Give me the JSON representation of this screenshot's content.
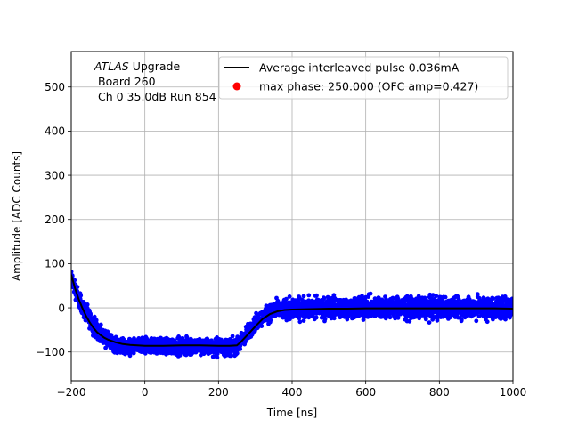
{
  "chart_data": {
    "type": "scatter",
    "xlabel": "Time [ns]",
    "ylabel": "Amplitude [ADC Counts]",
    "xlim": [
      -200,
      1000
    ],
    "ylim": [
      -165,
      580
    ],
    "grid": true,
    "xticks": [
      -200,
      0,
      200,
      400,
      600,
      800,
      1000
    ],
    "xtick_labels": [
      "−200",
      "0",
      "200",
      "400",
      "600",
      "800",
      "1000"
    ],
    "yticks": [
      -100,
      0,
      100,
      200,
      300,
      400,
      500
    ],
    "ytick_labels": [
      "−100",
      "0",
      "100",
      "200",
      "300",
      "400",
      "500"
    ],
    "annotation": {
      "line1_italic": "ATLAS",
      "line1_rest": " Upgrade",
      "line2": "Board 260",
      "line3": "Ch 0 35.0dB  Run 854"
    },
    "legend": {
      "position": "top-right",
      "entries": [
        {
          "label": "Average interleaved pulse 0.036mA",
          "color": "#000000",
          "marker": "line"
        },
        {
          "label": "max phase: 250.000 (OFC amp=0.427)",
          "color": "#ff0000",
          "marker": "circle"
        }
      ]
    },
    "series": [
      {
        "kind": "scatter-band",
        "color": "#0000ff",
        "x": [
          -200,
          -190,
          -180,
          -170,
          -160,
          -150,
          -140,
          -120,
          -100,
          -80,
          -50,
          0,
          50,
          100,
          150,
          200,
          240,
          250,
          270,
          300,
          330,
          350,
          380,
          400,
          450,
          500,
          600,
          700,
          800,
          900,
          1000
        ],
        "y_upper": [
          95,
          70,
          48,
          30,
          15,
          2,
          -10,
          -35,
          -50,
          -58,
          -62,
          -62,
          -60,
          -60,
          -60,
          -62,
          -62,
          -60,
          -40,
          -10,
          12,
          22,
          30,
          32,
          35,
          35,
          35,
          35,
          35,
          35,
          35
        ],
        "y_lower": [
          40,
          15,
          -5,
          -25,
          -42,
          -55,
          -68,
          -85,
          -100,
          -110,
          -113,
          -113,
          -112,
          -115,
          -115,
          -115,
          -115,
          -112,
          -95,
          -60,
          -40,
          -35,
          -38,
          -35,
          -35,
          -35,
          -35,
          -35,
          -35,
          -35,
          -35
        ]
      },
      {
        "kind": "line",
        "color": "#000000",
        "x": [
          -200,
          -190,
          -180,
          -170,
          -160,
          -150,
          -140,
          -130,
          -120,
          -110,
          -100,
          -80,
          -60,
          -40,
          -20,
          0,
          50,
          100,
          150,
          200,
          230,
          250,
          260,
          280,
          300,
          320,
          340,
          360,
          380,
          400,
          450,
          500,
          550,
          600,
          650,
          700,
          750,
          800,
          850,
          900,
          950,
          1000
        ],
        "y": [
          75,
          45,
          20,
          0,
          -18,
          -33,
          -45,
          -55,
          -62,
          -68,
          -72,
          -78,
          -82,
          -84,
          -85,
          -86,
          -86,
          -85,
          -85,
          -86,
          -86,
          -85,
          -78,
          -60,
          -42,
          -25,
          -14,
          -8,
          -5,
          -4,
          -3,
          -2,
          -2,
          -1,
          -1,
          -1,
          -1,
          -1,
          -1,
          -1,
          -1,
          -2
        ]
      }
    ]
  }
}
